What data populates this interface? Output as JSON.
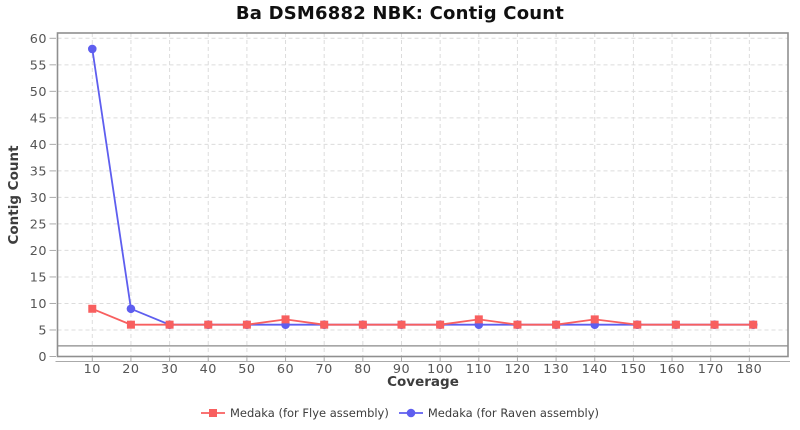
{
  "chart_data": {
    "type": "line",
    "title": "Ba DSM6882 NBK: Contig Count",
    "xlabel": "Coverage",
    "ylabel": "Contig Count",
    "x": [
      10,
      20,
      30,
      40,
      50,
      60,
      70,
      80,
      90,
      100,
      110,
      120,
      130,
      140,
      151,
      161,
      171,
      181
    ],
    "series": [
      {
        "name": "Medaka (for Flye assembly)",
        "color": "#f85f5f",
        "marker": "square",
        "values": [
          9,
          6,
          6,
          6,
          6,
          7,
          6,
          6,
          6,
          6,
          7,
          6,
          6,
          7,
          6,
          6,
          6,
          6
        ]
      },
      {
        "name": "Medaka (for Raven assembly)",
        "color": "#5e5eef",
        "marker": "circle",
        "values": [
          58,
          9,
          6,
          6,
          6,
          6,
          6,
          6,
          6,
          6,
          6,
          6,
          6,
          6,
          6,
          6,
          6,
          6
        ]
      }
    ],
    "xticks": [
      10,
      20,
      30,
      40,
      50,
      60,
      70,
      80,
      90,
      100,
      110,
      120,
      130,
      140,
      150,
      160,
      170,
      180
    ],
    "yticks": [
      0,
      5,
      10,
      15,
      20,
      25,
      30,
      35,
      40,
      45,
      50,
      55,
      60
    ],
    "xlim": [
      1,
      190
    ],
    "ylim": [
      0,
      61
    ],
    "reference_line_y": 2,
    "grid": "dashed",
    "legend_position": "bottom",
    "colors": {
      "grid": "#dcdcdc",
      "plot_border": "#8f8f8f",
      "tick": "#aaaaaa",
      "reference_line": "#8a8a8a",
      "tick_label": "#555555",
      "axis_label": "#3d3d3d",
      "title": "#101010",
      "legend_text": "#3d3d3d",
      "background": "#ffffff"
    }
  }
}
